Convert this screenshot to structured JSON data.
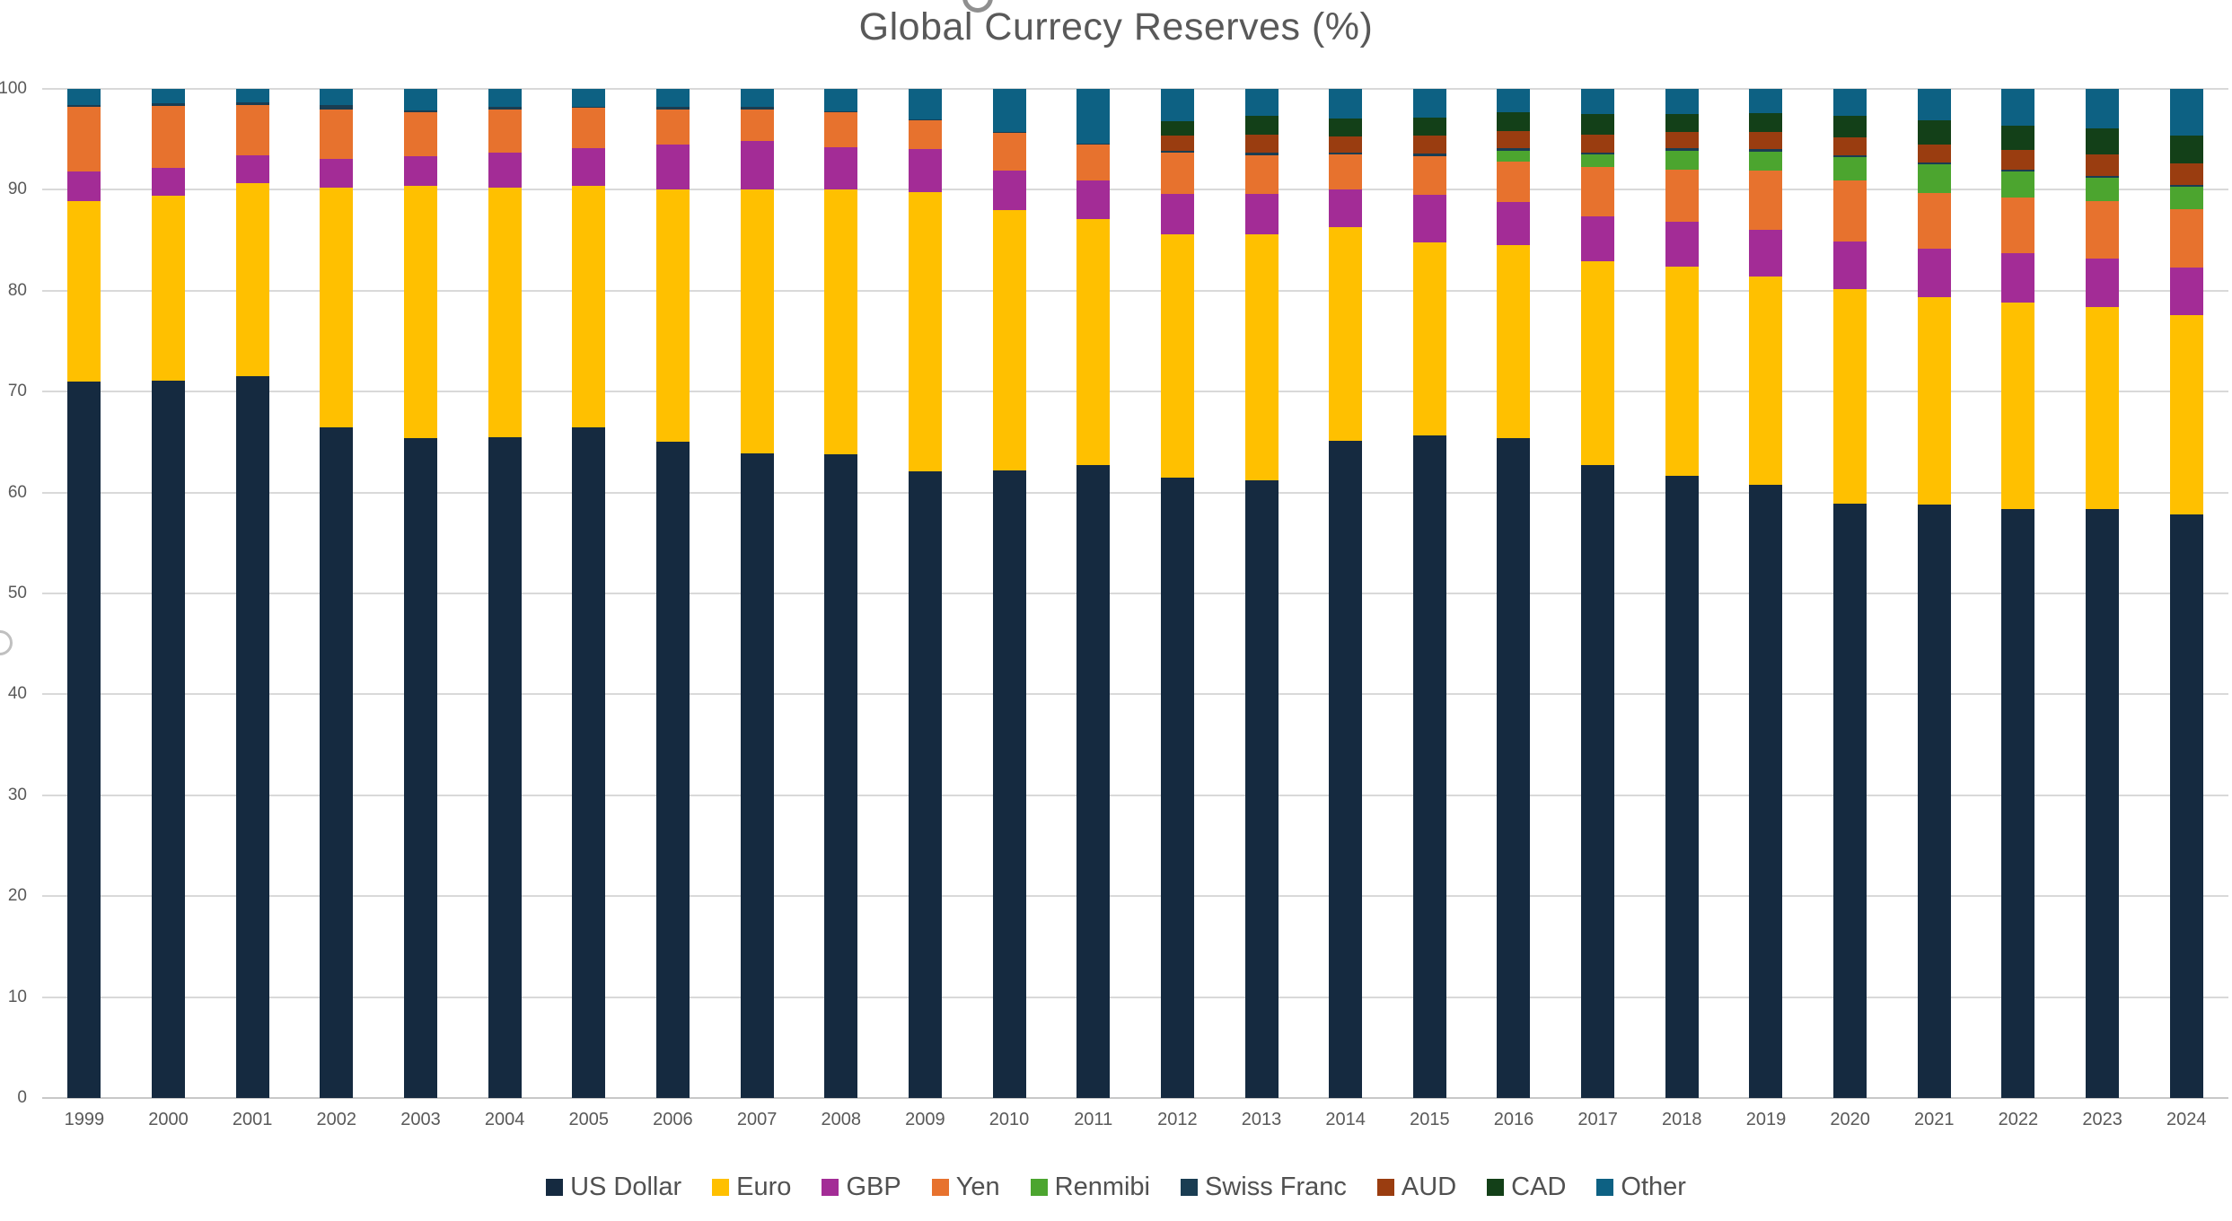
{
  "title": "Global Currecy Reserves (%)",
  "colors": {
    "grid": "#D9D9D9",
    "axis_line": "#C8C8C8",
    "text": "#595959",
    "title_text": "#595959",
    "legend_text": "#515151"
  },
  "chart_data": {
    "type": "bar",
    "stacked": true,
    "title": "Global Currecy Reserves (%)",
    "xlabel": "",
    "ylabel": "",
    "ylim": [
      0,
      100
    ],
    "yticks": [
      0,
      10,
      20,
      30,
      40,
      50,
      60,
      70,
      80,
      90,
      100
    ],
    "grid": true,
    "legend_position": "bottom",
    "categories": [
      "1999",
      "2000",
      "2001",
      "2002",
      "2003",
      "2004",
      "2005",
      "2006",
      "2007",
      "2008",
      "2009",
      "2010",
      "2011",
      "2012",
      "2013",
      "2014",
      "2015",
      "2016",
      "2017",
      "2018",
      "2019",
      "2020",
      "2021",
      "2022",
      "2023",
      "2024"
    ],
    "series": [
      {
        "name": "US Dollar",
        "color": "#152A40",
        "values": [
          71.0,
          71.1,
          71.5,
          66.5,
          65.4,
          65.5,
          66.5,
          65.0,
          63.9,
          63.8,
          62.1,
          62.2,
          62.7,
          61.5,
          61.2,
          65.1,
          65.7,
          65.4,
          62.7,
          61.7,
          60.8,
          58.9,
          58.8,
          58.4,
          58.4,
          57.8
        ]
      },
      {
        "name": "Euro",
        "color": "#FFC000",
        "values": [
          17.9,
          18.3,
          19.2,
          23.7,
          25.0,
          24.7,
          23.9,
          25.0,
          26.1,
          26.2,
          27.7,
          25.8,
          24.4,
          24.1,
          24.4,
          21.2,
          19.1,
          19.1,
          20.2,
          20.7,
          20.6,
          21.3,
          20.6,
          20.4,
          20.0,
          19.8
        ]
      },
      {
        "name": "GBP",
        "color": "#A32C96",
        "values": [
          2.9,
          2.8,
          2.7,
          2.9,
          2.9,
          3.5,
          3.7,
          4.5,
          4.8,
          4.2,
          4.2,
          3.9,
          3.8,
          4.0,
          4.0,
          3.7,
          4.7,
          4.3,
          4.5,
          4.4,
          4.6,
          4.7,
          4.8,
          4.9,
          4.8,
          4.7
        ]
      },
      {
        "name": "Yen",
        "color": "#E7722E",
        "values": [
          6.4,
          6.1,
          5.0,
          4.9,
          4.4,
          4.3,
          4.0,
          3.5,
          3.2,
          3.5,
          2.9,
          3.7,
          3.6,
          4.1,
          3.8,
          3.5,
          3.8,
          4.0,
          4.9,
          5.2,
          5.9,
          6.0,
          5.5,
          5.5,
          5.7,
          5.8
        ]
      },
      {
        "name": "Renmibi",
        "color": "#4CA52F",
        "values": [
          0,
          0,
          0,
          0,
          0,
          0,
          0,
          0,
          0,
          0,
          0,
          0,
          0,
          0,
          0,
          0,
          0,
          1.1,
          1.2,
          1.9,
          1.9,
          2.3,
          2.8,
          2.6,
          2.3,
          2.2
        ]
      },
      {
        "name": "Swiss Franc",
        "color": "#1A3D52",
        "values": [
          0.2,
          0.3,
          0.3,
          0.4,
          0.2,
          0.2,
          0.1,
          0.2,
          0.2,
          0.1,
          0.1,
          0.1,
          0.1,
          0.2,
          0.3,
          0.2,
          0.3,
          0.2,
          0.2,
          0.2,
          0.2,
          0.2,
          0.2,
          0.2,
          0.2,
          0.2
        ]
      },
      {
        "name": "AUD",
        "color": "#9A3D10",
        "values": [
          0,
          0,
          0,
          0,
          0,
          0,
          0,
          0,
          0,
          0,
          0,
          0,
          0,
          1.5,
          1.8,
          1.6,
          1.8,
          1.7,
          1.8,
          1.6,
          1.7,
          1.8,
          1.8,
          2.0,
          2.1,
          2.1
        ]
      },
      {
        "name": "CAD",
        "color": "#134018",
        "values": [
          0,
          0,
          0,
          0,
          0,
          0,
          0,
          0,
          0,
          0,
          0,
          0,
          0,
          1.4,
          1.8,
          1.8,
          1.8,
          1.9,
          2.0,
          1.8,
          1.9,
          2.1,
          2.4,
          2.4,
          2.6,
          2.8
        ]
      },
      {
        "name": "Other",
        "color": "#0D6183",
        "values": [
          1.6,
          1.4,
          1.3,
          1.6,
          2.1,
          1.8,
          1.8,
          1.8,
          1.8,
          2.2,
          3.0,
          4.3,
          5.4,
          3.2,
          2.7,
          2.9,
          2.8,
          2.3,
          2.5,
          2.5,
          2.4,
          2.7,
          3.1,
          3.6,
          3.9,
          4.6
        ]
      }
    ]
  }
}
